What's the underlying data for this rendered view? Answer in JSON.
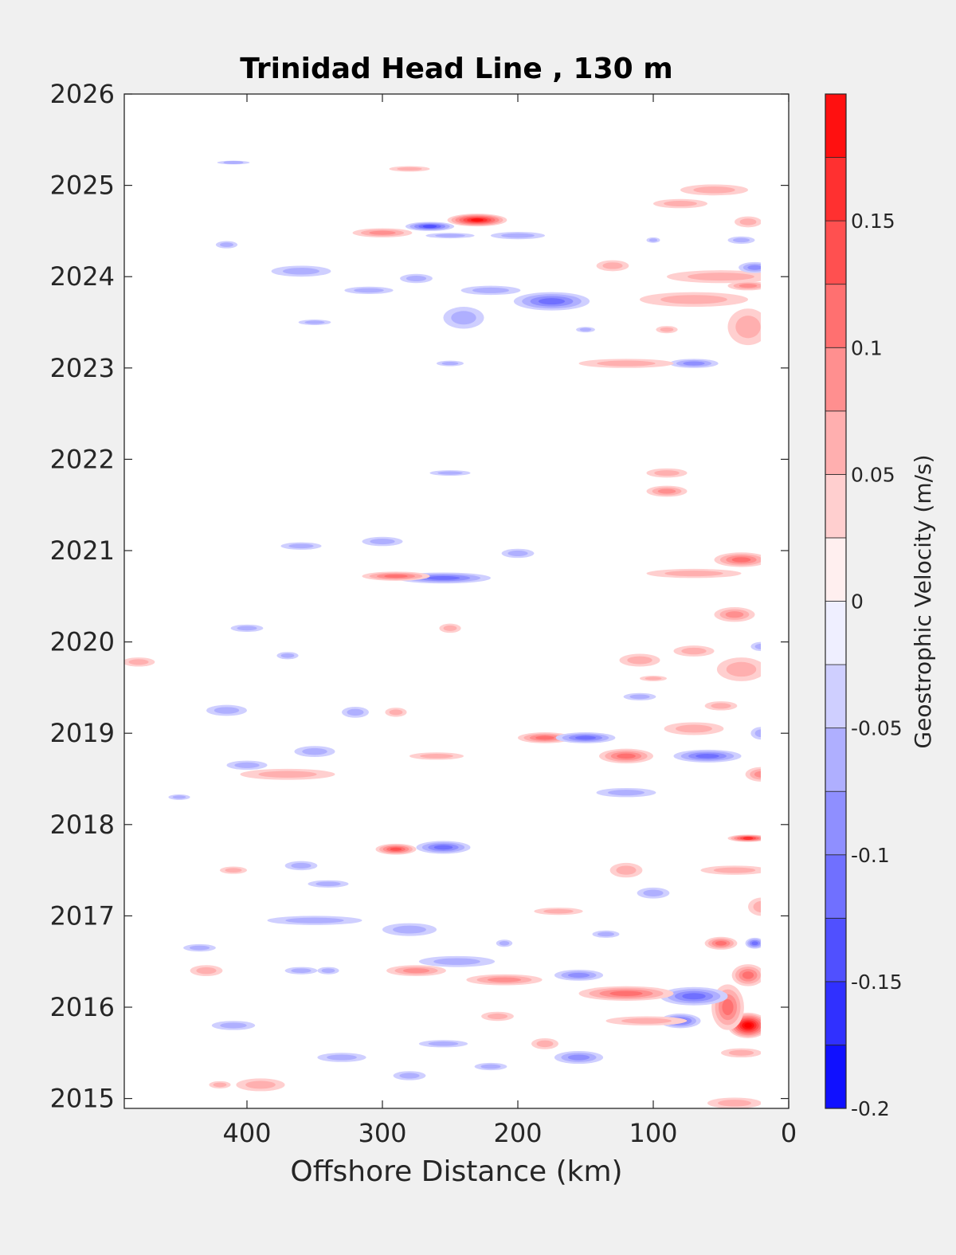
{
  "chart_data": {
    "type": "heatmap",
    "title": "Trinidad Head Line , 130 m",
    "xlabel": "Offshore Distance (km)",
    "ylabel": "",
    "x_axis": {
      "min": 0,
      "max": 490,
      "reversed": true,
      "ticks": [
        400,
        300,
        200,
        100,
        0
      ]
    },
    "y_axis": {
      "min": 2014.9,
      "max": 2026,
      "ticks": [
        2015,
        2016,
        2017,
        2018,
        2019,
        2020,
        2021,
        2022,
        2023,
        2024,
        2025,
        2026
      ]
    },
    "colorbar": {
      "label": "Geostrophic Velocity (m/s)",
      "min": -0.2,
      "max": 0.2,
      "levels": [
        -0.2,
        -0.175,
        -0.15,
        -0.125,
        -0.1,
        -0.075,
        -0.05,
        -0.025,
        0,
        0.025,
        0.05,
        0.075,
        0.1,
        0.125,
        0.15,
        0.175,
        0.2
      ],
      "tick_values": [
        -0.2,
        -0.15,
        -0.1,
        -0.05,
        0,
        0.05,
        0.1,
        0.15
      ],
      "tick_labels": [
        "-0.2",
        "-0.15",
        "-0.1",
        "-0.05",
        "0",
        "0.05",
        "0.1",
        "0.15"
      ]
    },
    "grid": false,
    "features": [
      {
        "dist": 30,
        "year": 2015.8,
        "dx": 15,
        "dy": 0.14,
        "v": 0.2
      },
      {
        "dist": 45,
        "year": 2016.0,
        "dx": 12,
        "dy": 0.25,
        "v": 0.1
      },
      {
        "dist": 30,
        "year": 2016.35,
        "dx": 12,
        "dy": 0.12,
        "v": 0.1
      },
      {
        "dist": 50,
        "year": 2016.7,
        "dx": 12,
        "dy": 0.07,
        "v": 0.1
      },
      {
        "dist": 25,
        "year": 2016.7,
        "dx": 7,
        "dy": 0.06,
        "v": -0.1
      },
      {
        "dist": 70,
        "year": 2016.12,
        "dx": 25,
        "dy": 0.1,
        "v": -0.11
      },
      {
        "dist": 80,
        "year": 2015.85,
        "dx": 15,
        "dy": 0.08,
        "v": -0.11
      },
      {
        "dist": 120,
        "year": 2016.15,
        "dx": 35,
        "dy": 0.08,
        "v": 0.09
      },
      {
        "dist": 105,
        "year": 2015.85,
        "dx": 30,
        "dy": 0.05,
        "v": 0.04
      },
      {
        "dist": 155,
        "year": 2016.35,
        "dx": 18,
        "dy": 0.06,
        "v": -0.08
      },
      {
        "dist": 210,
        "year": 2016.3,
        "dx": 28,
        "dy": 0.06,
        "v": 0.08
      },
      {
        "dist": 245,
        "year": 2016.5,
        "dx": 28,
        "dy": 0.06,
        "v": -0.05
      },
      {
        "dist": 275,
        "year": 2016.4,
        "dx": 22,
        "dy": 0.06,
        "v": 0.07
      },
      {
        "dist": 280,
        "year": 2016.85,
        "dx": 20,
        "dy": 0.07,
        "v": -0.06
      },
      {
        "dist": 155,
        "year": 2015.45,
        "dx": 18,
        "dy": 0.07,
        "v": -0.07
      },
      {
        "dist": 135,
        "year": 2016.8,
        "dx": 10,
        "dy": 0.04,
        "v": -0.04
      },
      {
        "dist": 35,
        "year": 2015.5,
        "dx": 15,
        "dy": 0.05,
        "v": 0.06
      },
      {
        "dist": 40,
        "year": 2014.95,
        "dx": 20,
        "dy": 0.06,
        "v": 0.05
      },
      {
        "dist": 220,
        "year": 2015.35,
        "dx": 12,
        "dy": 0.04,
        "v": -0.04
      },
      {
        "dist": 255,
        "year": 2015.6,
        "dx": 18,
        "dy": 0.04,
        "v": -0.05
      },
      {
        "dist": 280,
        "year": 2015.25,
        "dx": 12,
        "dy": 0.05,
        "v": -0.04
      },
      {
        "dist": 330,
        "year": 2015.45,
        "dx": 18,
        "dy": 0.05,
        "v": -0.05
      },
      {
        "dist": 390,
        "year": 2015.15,
        "dx": 18,
        "dy": 0.07,
        "v": 0.05
      },
      {
        "dist": 410,
        "year": 2015.8,
        "dx": 16,
        "dy": 0.05,
        "v": -0.05
      },
      {
        "dist": 430,
        "year": 2016.4,
        "dx": 12,
        "dy": 0.06,
        "v": 0.04
      },
      {
        "dist": 435,
        "year": 2016.65,
        "dx": 12,
        "dy": 0.04,
        "v": -0.05
      },
      {
        "dist": 350,
        "year": 2016.95,
        "dx": 35,
        "dy": 0.05,
        "v": -0.05
      },
      {
        "dist": 360,
        "year": 2016.4,
        "dx": 12,
        "dy": 0.04,
        "v": -0.04
      },
      {
        "dist": 30,
        "year": 2017.85,
        "dx": 15,
        "dy": 0.04,
        "v": 0.14
      },
      {
        "dist": 40,
        "year": 2017.5,
        "dx": 25,
        "dy": 0.05,
        "v": 0.04
      },
      {
        "dist": 20,
        "year": 2017.1,
        "dx": 10,
        "dy": 0.1,
        "v": 0.05
      },
      {
        "dist": 290,
        "year": 2017.73,
        "dx": 15,
        "dy": 0.06,
        "v": 0.13
      },
      {
        "dist": 255,
        "year": 2017.75,
        "dx": 20,
        "dy": 0.07,
        "v": -0.09
      },
      {
        "dist": 170,
        "year": 2017.05,
        "dx": 18,
        "dy": 0.04,
        "v": 0.04
      },
      {
        "dist": 120,
        "year": 2017.5,
        "dx": 12,
        "dy": 0.08,
        "v": 0.05
      },
      {
        "dist": 100,
        "year": 2017.25,
        "dx": 12,
        "dy": 0.06,
        "v": -0.05
      },
      {
        "dist": 360,
        "year": 2017.55,
        "dx": 12,
        "dy": 0.05,
        "v": -0.04
      },
      {
        "dist": 410,
        "year": 2017.5,
        "dx": 10,
        "dy": 0.04,
        "v": 0.04
      },
      {
        "dist": 340,
        "year": 2017.35,
        "dx": 15,
        "dy": 0.04,
        "v": -0.04
      },
      {
        "dist": 120,
        "year": 2018.35,
        "dx": 22,
        "dy": 0.05,
        "v": -0.05
      },
      {
        "dist": 60,
        "year": 2018.75,
        "dx": 25,
        "dy": 0.07,
        "v": -0.09
      },
      {
        "dist": 120,
        "year": 2018.75,
        "dx": 20,
        "dy": 0.08,
        "v": 0.1
      },
      {
        "dist": 180,
        "year": 2018.95,
        "dx": 20,
        "dy": 0.06,
        "v": 0.09
      },
      {
        "dist": 150,
        "year": 2018.95,
        "dx": 22,
        "dy": 0.06,
        "v": -0.09
      },
      {
        "dist": 20,
        "year": 2018.55,
        "dx": 12,
        "dy": 0.08,
        "v": 0.07
      },
      {
        "dist": 20,
        "year": 2019.0,
        "dx": 8,
        "dy": 0.07,
        "v": -0.05
      },
      {
        "dist": 70,
        "year": 2019.05,
        "dx": 22,
        "dy": 0.07,
        "v": 0.04
      },
      {
        "dist": 110,
        "year": 2019.4,
        "dx": 12,
        "dy": 0.04,
        "v": -0.05
      },
      {
        "dist": 50,
        "year": 2019.3,
        "dx": 12,
        "dy": 0.05,
        "v": 0.04
      },
      {
        "dist": 370,
        "year": 2018.55,
        "dx": 35,
        "dy": 0.06,
        "v": 0.05
      },
      {
        "dist": 400,
        "year": 2018.65,
        "dx": 15,
        "dy": 0.05,
        "v": -0.05
      },
      {
        "dist": 350,
        "year": 2018.8,
        "dx": 15,
        "dy": 0.06,
        "v": -0.05
      },
      {
        "dist": 260,
        "year": 2018.75,
        "dx": 20,
        "dy": 0.04,
        "v": 0.04
      },
      {
        "dist": 415,
        "year": 2019.25,
        "dx": 15,
        "dy": 0.06,
        "v": -0.05
      },
      {
        "dist": 290,
        "year": 2019.23,
        "dx": 8,
        "dy": 0.05,
        "v": 0.05
      },
      {
        "dist": 320,
        "year": 2019.23,
        "dx": 10,
        "dy": 0.06,
        "v": -0.04
      },
      {
        "dist": 35,
        "year": 2019.7,
        "dx": 18,
        "dy": 0.13,
        "v": 0.05
      },
      {
        "dist": 110,
        "year": 2019.8,
        "dx": 15,
        "dy": 0.07,
        "v": 0.04
      },
      {
        "dist": 70,
        "year": 2019.9,
        "dx": 15,
        "dy": 0.06,
        "v": 0.04
      },
      {
        "dist": 40,
        "year": 2020.3,
        "dx": 15,
        "dy": 0.08,
        "v": 0.08
      },
      {
        "dist": 35,
        "year": 2020.9,
        "dx": 20,
        "dy": 0.08,
        "v": 0.09
      },
      {
        "dist": 70,
        "year": 2020.75,
        "dx": 35,
        "dy": 0.05,
        "v": 0.04
      },
      {
        "dist": 255,
        "year": 2020.7,
        "dx": 35,
        "dy": 0.06,
        "v": -0.09
      },
      {
        "dist": 290,
        "year": 2020.72,
        "dx": 25,
        "dy": 0.05,
        "v": 0.09
      },
      {
        "dist": 200,
        "year": 2020.97,
        "dx": 12,
        "dy": 0.05,
        "v": -0.05
      },
      {
        "dist": 300,
        "year": 2021.1,
        "dx": 15,
        "dy": 0.05,
        "v": -0.06
      },
      {
        "dist": 360,
        "year": 2021.05,
        "dx": 15,
        "dy": 0.04,
        "v": -0.04
      },
      {
        "dist": 400,
        "year": 2020.15,
        "dx": 12,
        "dy": 0.04,
        "v": -0.04
      },
      {
        "dist": 370,
        "year": 2019.85,
        "dx": 8,
        "dy": 0.04,
        "v": -0.04
      },
      {
        "dist": 450,
        "year": 2018.3,
        "dx": 8,
        "dy": 0.03,
        "v": -0.04
      },
      {
        "dist": 90,
        "year": 2021.65,
        "dx": 15,
        "dy": 0.06,
        "v": 0.08
      },
      {
        "dist": 90,
        "year": 2021.85,
        "dx": 15,
        "dy": 0.05,
        "v": 0.04
      },
      {
        "dist": 250,
        "year": 2021.85,
        "dx": 15,
        "dy": 0.03,
        "v": -0.04
      },
      {
        "dist": 30,
        "year": 2023.45,
        "dx": 15,
        "dy": 0.2,
        "v": 0.05
      },
      {
        "dist": 70,
        "year": 2023.05,
        "dx": 18,
        "dy": 0.05,
        "v": -0.08
      },
      {
        "dist": 120,
        "year": 2023.05,
        "dx": 35,
        "dy": 0.05,
        "v": 0.05
      },
      {
        "dist": 175,
        "year": 2023.73,
        "dx": 28,
        "dy": 0.1,
        "v": -0.1
      },
      {
        "dist": 240,
        "year": 2023.55,
        "dx": 15,
        "dy": 0.12,
        "v": -0.05
      },
      {
        "dist": 220,
        "year": 2023.85,
        "dx": 22,
        "dy": 0.05,
        "v": -0.05
      },
      {
        "dist": 70,
        "year": 2023.75,
        "dx": 40,
        "dy": 0.08,
        "v": 0.06
      },
      {
        "dist": 50,
        "year": 2024.0,
        "dx": 40,
        "dy": 0.07,
        "v": 0.05
      },
      {
        "dist": 25,
        "year": 2024.1,
        "dx": 12,
        "dy": 0.06,
        "v": -0.07
      },
      {
        "dist": 30,
        "year": 2023.9,
        "dx": 15,
        "dy": 0.05,
        "v": 0.07
      },
      {
        "dist": 130,
        "year": 2024.12,
        "dx": 12,
        "dy": 0.06,
        "v": 0.05
      },
      {
        "dist": 230,
        "year": 2024.62,
        "dx": 22,
        "dy": 0.07,
        "v": 0.18
      },
      {
        "dist": 265,
        "year": 2024.55,
        "dx": 18,
        "dy": 0.05,
        "v": -0.13
      },
      {
        "dist": 300,
        "year": 2024.48,
        "dx": 22,
        "dy": 0.05,
        "v": 0.08
      },
      {
        "dist": 250,
        "year": 2024.45,
        "dx": 18,
        "dy": 0.03,
        "v": -0.04
      },
      {
        "dist": 360,
        "year": 2024.06,
        "dx": 22,
        "dy": 0.06,
        "v": -0.05
      },
      {
        "dist": 275,
        "year": 2023.98,
        "dx": 12,
        "dy": 0.05,
        "v": -0.05
      },
      {
        "dist": 310,
        "year": 2023.85,
        "dx": 18,
        "dy": 0.04,
        "v": -0.04
      },
      {
        "dist": 350,
        "year": 2023.5,
        "dx": 12,
        "dy": 0.03,
        "v": -0.04
      },
      {
        "dist": 80,
        "year": 2024.8,
        "dx": 20,
        "dy": 0.05,
        "v": 0.06
      },
      {
        "dist": 55,
        "year": 2024.95,
        "dx": 25,
        "dy": 0.06,
        "v": 0.05
      },
      {
        "dist": 30,
        "year": 2024.6,
        "dx": 10,
        "dy": 0.06,
        "v": 0.04
      },
      {
        "dist": 35,
        "year": 2024.4,
        "dx": 10,
        "dy": 0.04,
        "v": -0.04
      },
      {
        "dist": 415,
        "year": 2024.35,
        "dx": 8,
        "dy": 0.04,
        "v": -0.04
      },
      {
        "dist": 410,
        "year": 2025.25,
        "dx": 12,
        "dy": 0.02,
        "v": -0.04
      },
      {
        "dist": 200,
        "year": 2024.45,
        "dx": 20,
        "dy": 0.04,
        "v": -0.04
      },
      {
        "dist": 90,
        "year": 2023.42,
        "dx": 8,
        "dy": 0.04,
        "v": 0.04
      },
      {
        "dist": 100,
        "year": 2024.4,
        "dx": 5,
        "dy": 0.03,
        "v": -0.04
      },
      {
        "dist": 150,
        "year": 2023.42,
        "dx": 7,
        "dy": 0.03,
        "v": -0.04
      },
      {
        "dist": 250,
        "year": 2023.05,
        "dx": 10,
        "dy": 0.03,
        "v": -0.04
      },
      {
        "dist": 280,
        "year": 2025.18,
        "dx": 15,
        "dy": 0.03,
        "v": 0.04
      },
      {
        "dist": 20,
        "year": 2019.95,
        "dx": 8,
        "dy": 0.05,
        "v": -0.04
      },
      {
        "dist": 100,
        "year": 2019.6,
        "dx": 10,
        "dy": 0.03,
        "v": 0.04
      },
      {
        "dist": 420,
        "year": 2015.15,
        "dx": 8,
        "dy": 0.04,
        "v": 0.04
      },
      {
        "dist": 480,
        "year": 2019.78,
        "dx": 12,
        "dy": 0.05,
        "v": 0.04
      },
      {
        "dist": 250,
        "year": 2020.15,
        "dx": 8,
        "dy": 0.05,
        "v": 0.04
      },
      {
        "dist": 340,
        "year": 2016.4,
        "dx": 8,
        "dy": 0.04,
        "v": -0.04
      },
      {
        "dist": 210,
        "year": 2016.7,
        "dx": 6,
        "dy": 0.04,
        "v": -0.04
      },
      {
        "dist": 180,
        "year": 2015.6,
        "dx": 10,
        "dy": 0.06,
        "v": 0.04
      },
      {
        "dist": 215,
        "year": 2015.9,
        "dx": 12,
        "dy": 0.05,
        "v": 0.04
      }
    ]
  }
}
